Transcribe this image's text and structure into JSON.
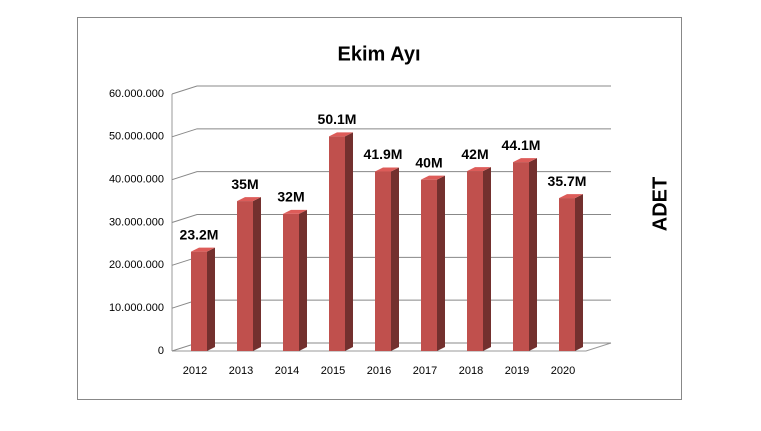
{
  "chart_data": {
    "type": "bar",
    "title": "Ekim Ayı",
    "y_label": "ADET",
    "categories": [
      "2012",
      "2013",
      "2014",
      "2015",
      "2016",
      "2017",
      "2018",
      "2019",
      "2020"
    ],
    "values": [
      23200000,
      35000000,
      32000000,
      50100000,
      41900000,
      40000000,
      42000000,
      44100000,
      35700000
    ],
    "value_labels": [
      "23.2M",
      "35M",
      "32M",
      "50.1M",
      "41.9M",
      "40M",
      "42M",
      "44.1M",
      "35.7M"
    ],
    "color": "#c0504d",
    "ylim": [
      0,
      60000000
    ],
    "yticks": [
      0,
      {
        "value": 10000000,
        "label": "10.000.000"
      },
      {
        "value": 20000000,
        "label": "20.000.000"
      },
      {
        "value": 30000000,
        "label": "30.000.000"
      },
      {
        "value": 40000000,
        "label": "40.000.000"
      },
      {
        "value": 50000000,
        "label": "50.000.000"
      },
      {
        "value": 60000000,
        "label": "60.000.000"
      }
    ],
    "grid": true
  }
}
